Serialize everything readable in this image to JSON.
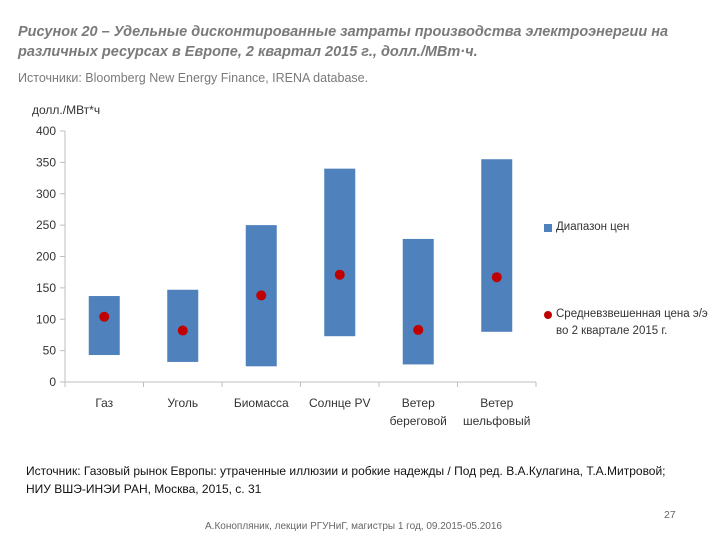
{
  "slide": {
    "title": "Рисунок 20 – Удельные дисконтированные затраты производства электроэнергии на различных ресурсах в Европе, 2 квартал 2015 г., долл./МВт·ч.",
    "source": "Источники: Bloomberg New Energy Finance, IRENA database.",
    "footnote": "Источник: Газовый рынок Европы: утраченные иллюзии и робкие надежды / Под ред. В.А.Кулагина, Т.А.Митровой; НИУ ВШЭ-ИНЭИ РАН, Москва, 2015, с. 31",
    "page_number": "27",
    "footer": "А.Конопляник, лекции РГУНиГ, магистры 1 год, 09.2015-05.2016"
  },
  "colors": {
    "bar": "#4f81bd",
    "marker": "#c00000",
    "axis": "#bfbfbf",
    "text": "#333333"
  },
  "chart_data": {
    "type": "bar",
    "ylabel": "долл./МВт*ч",
    "ylim": [
      0,
      400
    ],
    "yticks": [
      0,
      50,
      100,
      150,
      200,
      250,
      300,
      350,
      400
    ],
    "categories": [
      [
        "Газ"
      ],
      [
        "Уголь"
      ],
      [
        "Биомасса"
      ],
      [
        "Солнце PV"
      ],
      [
        "Ветер",
        "береговой"
      ],
      [
        "Ветер",
        "шельфовый"
      ]
    ],
    "series": [
      {
        "name": "Диапазон цен",
        "kind": "range",
        "low": [
          43,
          32,
          25,
          73,
          28,
          80
        ],
        "high": [
          137,
          147,
          250,
          340,
          228,
          355
        ]
      },
      {
        "name": "Средневзвешенная цена э/э во 2 квартале 2015 г.",
        "kind": "marker",
        "values": [
          104,
          82,
          138,
          171,
          83,
          167
        ]
      }
    ],
    "legend": {
      "position": "right",
      "range_label": "Диапазон цен",
      "marker_label_lines": [
        "Средневзвешенная цена э/э",
        "во 2 квартале 2015 г."
      ]
    },
    "grid": false
  }
}
